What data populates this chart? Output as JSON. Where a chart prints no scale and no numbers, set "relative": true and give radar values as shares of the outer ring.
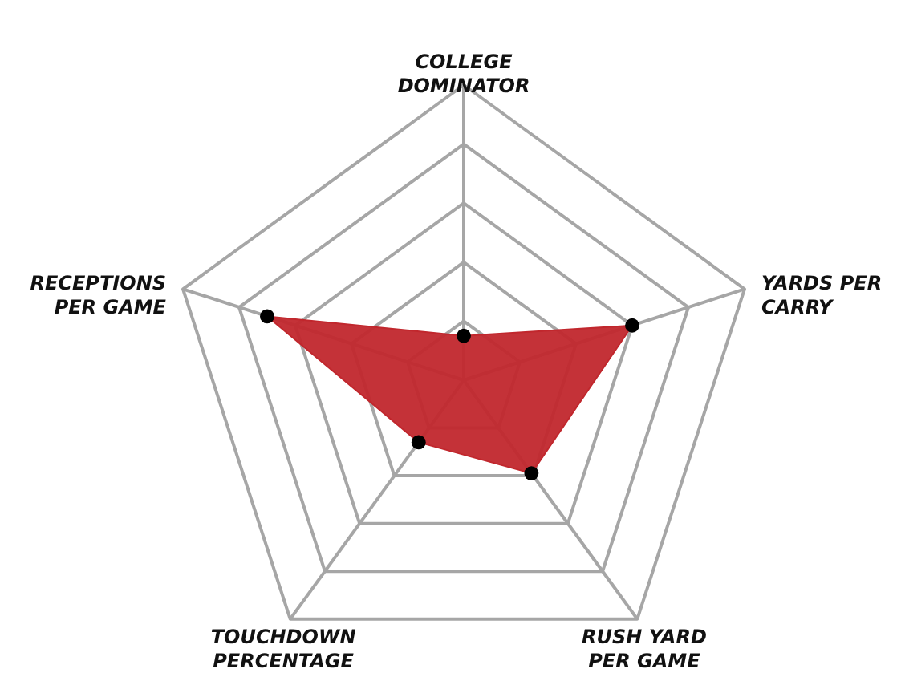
{
  "chart_data": {
    "type": "radar",
    "relative": true,
    "grid": true,
    "marker": "circle",
    "categories": [
      "COLLEGE\nDOMINATOR",
      "YARDS PER\nCARRY",
      "RUSH YARD\nPER GAME",
      "TOUCHDOWN\nPERCENTAGE",
      "RECEPTIONS\nPER GAME"
    ],
    "series": [
      {
        "color": "#c1272d",
        "values": [
          0.15,
          0.6,
          0.39,
          0.26,
          0.7
        ]
      }
    ]
  }
}
